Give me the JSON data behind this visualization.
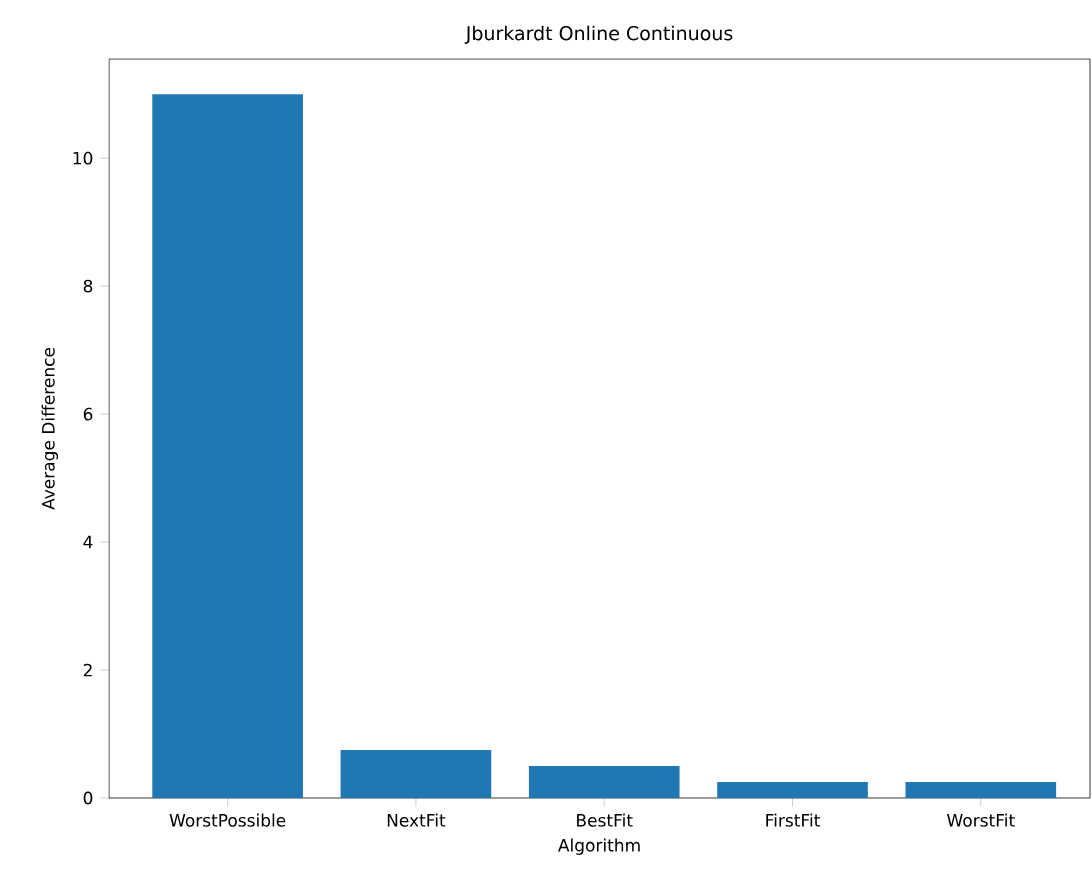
{
  "chart_data": {
    "type": "bar",
    "title": "Jburkardt Online Continuous",
    "xlabel": "Algorithm",
    "ylabel": "Average Difference",
    "categories": [
      "WorstPossible",
      "NextFit",
      "BestFit",
      "FirstFit",
      "WorstFit"
    ],
    "values": [
      11.0,
      0.75,
      0.5,
      0.25,
      0.25
    ],
    "color": "#1f77b4",
    "ylim": [
      0,
      11.55
    ],
    "yticks": [
      0,
      2,
      4,
      6,
      8,
      10
    ]
  }
}
